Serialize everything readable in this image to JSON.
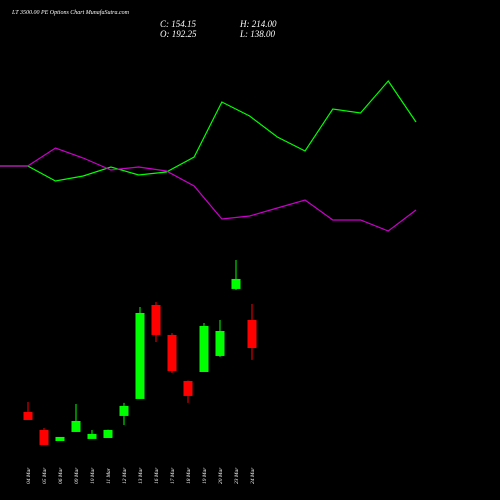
{
  "title": "LT 3500.00 PE Options Chart MunafaSutra.com",
  "ohlc": {
    "close": "C: 154.15",
    "open": "O: 192.25",
    "high": "H: 214.00",
    "low": "L: 138.00"
  },
  "chart_data": [
    {
      "type": "line",
      "x": [
        0,
        1,
        2,
        3,
        4,
        5,
        6,
        7,
        8,
        9,
        10,
        11,
        12,
        13,
        14,
        15
      ],
      "xlim": [
        0,
        15
      ],
      "ylim": [
        0,
        250
      ],
      "series": [
        {
          "color": "#00ff00",
          "values": [
            84,
            84,
            69,
            74,
            83,
            75,
            78,
            93,
            148,
            134,
            113,
            99,
            141,
            137,
            169,
            128
          ]
        },
        {
          "color": "#cc00cc",
          "values": [
            84,
            84,
            102,
            92,
            80,
            83,
            79,
            64,
            31,
            34,
            42,
            50,
            30,
            30,
            19,
            40
          ]
        }
      ]
    },
    {
      "type": "candlestick",
      "categories": [
        "04 Mar",
        "05 Mar",
        "06 Mar",
        "09 Mar",
        "10 Mar",
        "11 Mar",
        "12 Mar",
        "13 Mar",
        "16 Mar",
        "17 Mar",
        "18 Mar",
        "19 Mar",
        "20 Mar",
        "23 Mar",
        "24 Mar"
      ],
      "open": [
        67.1,
        42.6,
        27.6,
        39.9,
        30.4,
        31.7,
        61.7,
        84.8,
        212.7,
        171.9,
        109.3,
        121.5,
        143.3,
        234.5,
        192.25
      ],
      "high": [
        80.7,
        45.3,
        33.1,
        78,
        42.6,
        43,
        79.4,
        210,
        216.8,
        174.6,
        110,
        188.2,
        192.3,
        273.9,
        214
      ],
      "low": [
        56.2,
        22.2,
        27.6,
        39.9,
        30.4,
        31.7,
        49.4,
        84.8,
        162.3,
        120.2,
        79.4,
        121.5,
        141.9,
        233,
        138
      ],
      "close": [
        56.2,
        22.2,
        33.1,
        54.8,
        37.2,
        42.6,
        75.3,
        201.8,
        171.9,
        122.9,
        88.9,
        184.1,
        177.3,
        248.1,
        154.15
      ],
      "up_color": "#00ff00",
      "down_color": "#ff0000",
      "ylim": [
        -52.7,
        627.7
      ]
    }
  ]
}
